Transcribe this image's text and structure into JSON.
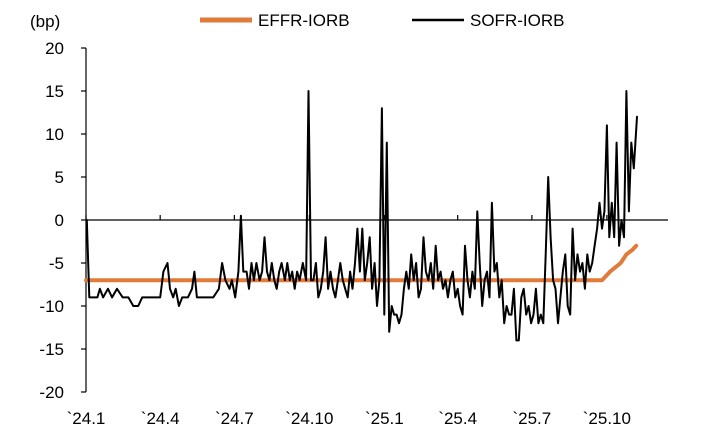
{
  "chart_data": {
    "type": "line",
    "title": "",
    "xlabel": "",
    "ylabel": "(bp)",
    "ylim": [
      -20,
      20
    ],
    "yticks": [
      20,
      15,
      10,
      5,
      0,
      -5,
      -10,
      -15,
      -20
    ],
    "xticks": [
      "`24.1",
      "`24.4",
      "`24.7",
      "`24.10",
      "`25.1",
      "`25.4",
      "`25.7",
      "`25.10"
    ],
    "x_range_months": [
      "2024-01",
      "2025-11"
    ],
    "grid": false,
    "zero_line": true,
    "legend_position": "top",
    "series": [
      {
        "name": "EFFR-IORB",
        "color": "#E07B39",
        "points": [
          [
            "2024-01-01",
            -7
          ],
          [
            "2025-09-25",
            -7
          ],
          [
            "2025-10-05",
            -6
          ],
          [
            "2025-10-18",
            -5
          ],
          [
            "2025-10-25",
            -4
          ],
          [
            "2025-11-01",
            -3.5
          ],
          [
            "2025-11-06",
            -3
          ]
        ]
      },
      {
        "name": "SOFR-IORB",
        "color": "#000000",
        "points": [
          [
            "2024-01-02",
            0
          ],
          [
            "2024-01-05",
            -9
          ],
          [
            "2024-01-15",
            -9
          ],
          [
            "2024-01-18",
            -8
          ],
          [
            "2024-01-22",
            -9
          ],
          [
            "2024-01-28",
            -8
          ],
          [
            "2024-02-02",
            -9
          ],
          [
            "2024-02-08",
            -8
          ],
          [
            "2024-02-15",
            -9
          ],
          [
            "2024-02-22",
            -9
          ],
          [
            "2024-02-28",
            -10
          ],
          [
            "2024-03-05",
            -10
          ],
          [
            "2024-03-10",
            -9
          ],
          [
            "2024-03-18",
            -9
          ],
          [
            "2024-03-25",
            -9
          ],
          [
            "2024-04-01",
            -9
          ],
          [
            "2024-04-05",
            -6
          ],
          [
            "2024-04-10",
            -5
          ],
          [
            "2024-04-13",
            -8
          ],
          [
            "2024-04-17",
            -9
          ],
          [
            "2024-04-20",
            -8
          ],
          [
            "2024-04-24",
            -10
          ],
          [
            "2024-04-28",
            -9
          ],
          [
            "2024-05-05",
            -9
          ],
          [
            "2024-05-10",
            -8
          ],
          [
            "2024-05-13",
            -6
          ],
          [
            "2024-05-16",
            -9
          ],
          [
            "2024-05-25",
            -9
          ],
          [
            "2024-06-05",
            -9
          ],
          [
            "2024-06-12",
            -8
          ],
          [
            "2024-06-16",
            -5
          ],
          [
            "2024-06-20",
            -7
          ],
          [
            "2024-06-25",
            -8
          ],
          [
            "2024-06-28",
            -7
          ],
          [
            "2024-07-02",
            -9
          ],
          [
            "2024-07-06",
            -6
          ],
          [
            "2024-07-09",
            0.5
          ],
          [
            "2024-07-12",
            -6
          ],
          [
            "2024-07-16",
            -6
          ],
          [
            "2024-07-19",
            -8
          ],
          [
            "2024-07-22",
            -5
          ],
          [
            "2024-07-25",
            -7
          ],
          [
            "2024-07-28",
            -5
          ],
          [
            "2024-08-01",
            -7
          ],
          [
            "2024-08-04",
            -6
          ],
          [
            "2024-08-07",
            -2
          ],
          [
            "2024-08-10",
            -6
          ],
          [
            "2024-08-13",
            -7
          ],
          [
            "2024-08-16",
            -5
          ],
          [
            "2024-08-19",
            -7
          ],
          [
            "2024-08-22",
            -8
          ],
          [
            "2024-08-25",
            -6
          ],
          [
            "2024-08-28",
            -5
          ],
          [
            "2024-09-01",
            -7
          ],
          [
            "2024-09-04",
            -5
          ],
          [
            "2024-09-07",
            -7
          ],
          [
            "2024-09-10",
            -6
          ],
          [
            "2024-09-13",
            -8
          ],
          [
            "2024-09-16",
            -6
          ],
          [
            "2024-09-19",
            -7
          ],
          [
            "2024-09-23",
            -5
          ],
          [
            "2024-09-27",
            -7
          ],
          [
            "2024-09-30",
            15
          ],
          [
            "2024-10-03",
            -7
          ],
          [
            "2024-10-06",
            -7
          ],
          [
            "2024-10-09",
            -5
          ],
          [
            "2024-10-12",
            -9
          ],
          [
            "2024-10-15",
            -8
          ],
          [
            "2024-10-18",
            -6
          ],
          [
            "2024-10-21",
            -2
          ],
          [
            "2024-10-24",
            -8
          ],
          [
            "2024-10-27",
            -6
          ],
          [
            "2024-10-30",
            -8
          ],
          [
            "2024-11-02",
            -9
          ],
          [
            "2024-11-05",
            -7
          ],
          [
            "2024-11-08",
            -5
          ],
          [
            "2024-11-11",
            -7
          ],
          [
            "2024-11-14",
            -8
          ],
          [
            "2024-11-17",
            -9
          ],
          [
            "2024-11-20",
            -6
          ],
          [
            "2024-11-23",
            -8
          ],
          [
            "2024-11-26",
            -5
          ],
          [
            "2024-11-29",
            -1
          ],
          [
            "2024-12-02",
            -6
          ],
          [
            "2024-12-05",
            -1
          ],
          [
            "2024-12-08",
            -7
          ],
          [
            "2024-12-11",
            -5
          ],
          [
            "2024-12-14",
            -2
          ],
          [
            "2024-12-17",
            -8
          ],
          [
            "2024-12-20",
            -5
          ],
          [
            "2024-12-23",
            -10
          ],
          [
            "2024-12-26",
            -7
          ],
          [
            "2024-12-29",
            13
          ],
          [
            "2025-01-01",
            -11
          ],
          [
            "2025-01-04",
            9
          ],
          [
            "2025-01-07",
            -13
          ],
          [
            "2025-01-10",
            -10
          ],
          [
            "2025-01-13",
            -11
          ],
          [
            "2025-01-16",
            -11
          ],
          [
            "2025-01-19",
            -12
          ],
          [
            "2025-01-22",
            -11
          ],
          [
            "2025-01-25",
            -8
          ],
          [
            "2025-01-28",
            -6
          ],
          [
            "2025-01-31",
            -8
          ],
          [
            "2025-02-03",
            -4
          ],
          [
            "2025-02-06",
            -7
          ],
          [
            "2025-02-09",
            -5
          ],
          [
            "2025-02-12",
            -9
          ],
          [
            "2025-02-15",
            -8
          ],
          [
            "2025-02-18",
            -2
          ],
          [
            "2025-02-21",
            -6
          ],
          [
            "2025-02-24",
            -7
          ],
          [
            "2025-02-27",
            -5
          ],
          [
            "2025-03-02",
            -8
          ],
          [
            "2025-03-05",
            -3
          ],
          [
            "2025-03-08",
            -7
          ],
          [
            "2025-03-11",
            -6
          ],
          [
            "2025-03-14",
            -8
          ],
          [
            "2025-03-17",
            -7
          ],
          [
            "2025-03-20",
            -9
          ],
          [
            "2025-03-23",
            -7
          ],
          [
            "2025-03-26",
            -6
          ],
          [
            "2025-03-29",
            -9
          ],
          [
            "2025-04-01",
            -8
          ],
          [
            "2025-04-04",
            -10
          ],
          [
            "2025-04-07",
            -11
          ],
          [
            "2025-04-10",
            -3
          ],
          [
            "2025-04-13",
            -7
          ],
          [
            "2025-04-16",
            -9
          ],
          [
            "2025-04-19",
            -6
          ],
          [
            "2025-04-22",
            -8
          ],
          [
            "2025-04-25",
            1
          ],
          [
            "2025-04-28",
            -5
          ],
          [
            "2025-05-01",
            -10
          ],
          [
            "2025-05-04",
            -7
          ],
          [
            "2025-05-07",
            -6
          ],
          [
            "2025-05-10",
            -9
          ],
          [
            "2025-05-13",
            2
          ],
          [
            "2025-05-16",
            -6
          ],
          [
            "2025-05-19",
            -5
          ],
          [
            "2025-05-22",
            -9
          ],
          [
            "2025-05-25",
            -7
          ],
          [
            "2025-05-28",
            -12
          ],
          [
            "2025-05-31",
            -10
          ],
          [
            "2025-06-03",
            -11
          ],
          [
            "2025-06-06",
            -11
          ],
          [
            "2025-06-09",
            -8
          ],
          [
            "2025-06-12",
            -14
          ],
          [
            "2025-06-15",
            -14
          ],
          [
            "2025-06-18",
            -9
          ],
          [
            "2025-06-21",
            -8
          ],
          [
            "2025-06-24",
            -11
          ],
          [
            "2025-06-27",
            -10
          ],
          [
            "2025-06-30",
            -12
          ],
          [
            "2025-07-03",
            -11
          ],
          [
            "2025-07-06",
            -8
          ],
          [
            "2025-07-09",
            -12
          ],
          [
            "2025-07-12",
            -11
          ],
          [
            "2025-07-15",
            -12
          ],
          [
            "2025-07-18",
            -4
          ],
          [
            "2025-07-21",
            5
          ],
          [
            "2025-07-24",
            -2
          ],
          [
            "2025-07-27",
            -7
          ],
          [
            "2025-07-30",
            -8
          ],
          [
            "2025-08-02",
            -12
          ],
          [
            "2025-08-05",
            -9
          ],
          [
            "2025-08-08",
            -6
          ],
          [
            "2025-08-11",
            -4
          ],
          [
            "2025-08-14",
            -10
          ],
          [
            "2025-08-17",
            -11
          ],
          [
            "2025-08-20",
            -1
          ],
          [
            "2025-08-23",
            -7
          ],
          [
            "2025-08-26",
            -4
          ],
          [
            "2025-08-29",
            -6
          ],
          [
            "2025-09-01",
            -5
          ],
          [
            "2025-09-04",
            -8
          ],
          [
            "2025-09-07",
            -4
          ],
          [
            "2025-09-10",
            -6
          ],
          [
            "2025-09-13",
            -5
          ],
          [
            "2025-09-16",
            -3
          ],
          [
            "2025-09-19",
            -1
          ],
          [
            "2025-09-22",
            2
          ],
          [
            "2025-09-25",
            -1
          ],
          [
            "2025-09-28",
            1
          ],
          [
            "2025-10-01",
            11
          ],
          [
            "2025-10-04",
            -2
          ],
          [
            "2025-10-07",
            2
          ],
          [
            "2025-10-10",
            -2
          ],
          [
            "2025-10-13",
            9
          ],
          [
            "2025-10-16",
            -3
          ],
          [
            "2025-10-19",
            0
          ],
          [
            "2025-10-22",
            -2
          ],
          [
            "2025-10-25",
            15
          ],
          [
            "2025-10-28",
            1
          ],
          [
            "2025-10-31",
            9
          ],
          [
            "2025-11-03",
            6
          ],
          [
            "2025-11-05",
            9
          ],
          [
            "2025-11-07",
            12
          ]
        ]
      }
    ]
  }
}
